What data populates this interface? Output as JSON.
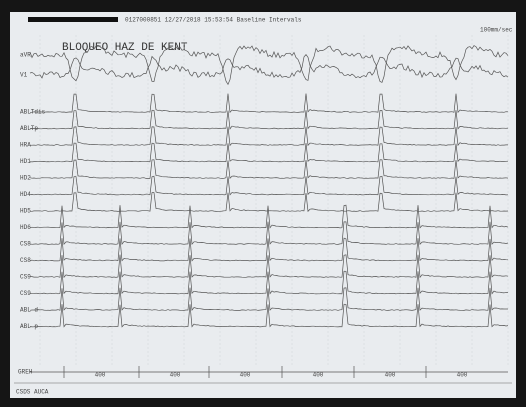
{
  "header": {
    "text": "0127000851 12/27/2018 15:53:54 Baseline Intervals",
    "speed": "100mm/sec"
  },
  "annotation": "BLOQUEO HAZ DE KENT",
  "channels": [
    "aVR",
    "V1",
    "ABLTdis",
    "ABLTp",
    "HRA",
    "HD1",
    "HD2",
    "HD4",
    "HD5",
    "HD6",
    "CS8",
    "CS8",
    "CS9",
    "CS9",
    "ABL d",
    "ABL p"
  ],
  "stim_label": "GREH",
  "intervals": [
    "400",
    "400",
    "400",
    "400",
    "400",
    "400"
  ],
  "footer": "CSDS AUCA"
}
